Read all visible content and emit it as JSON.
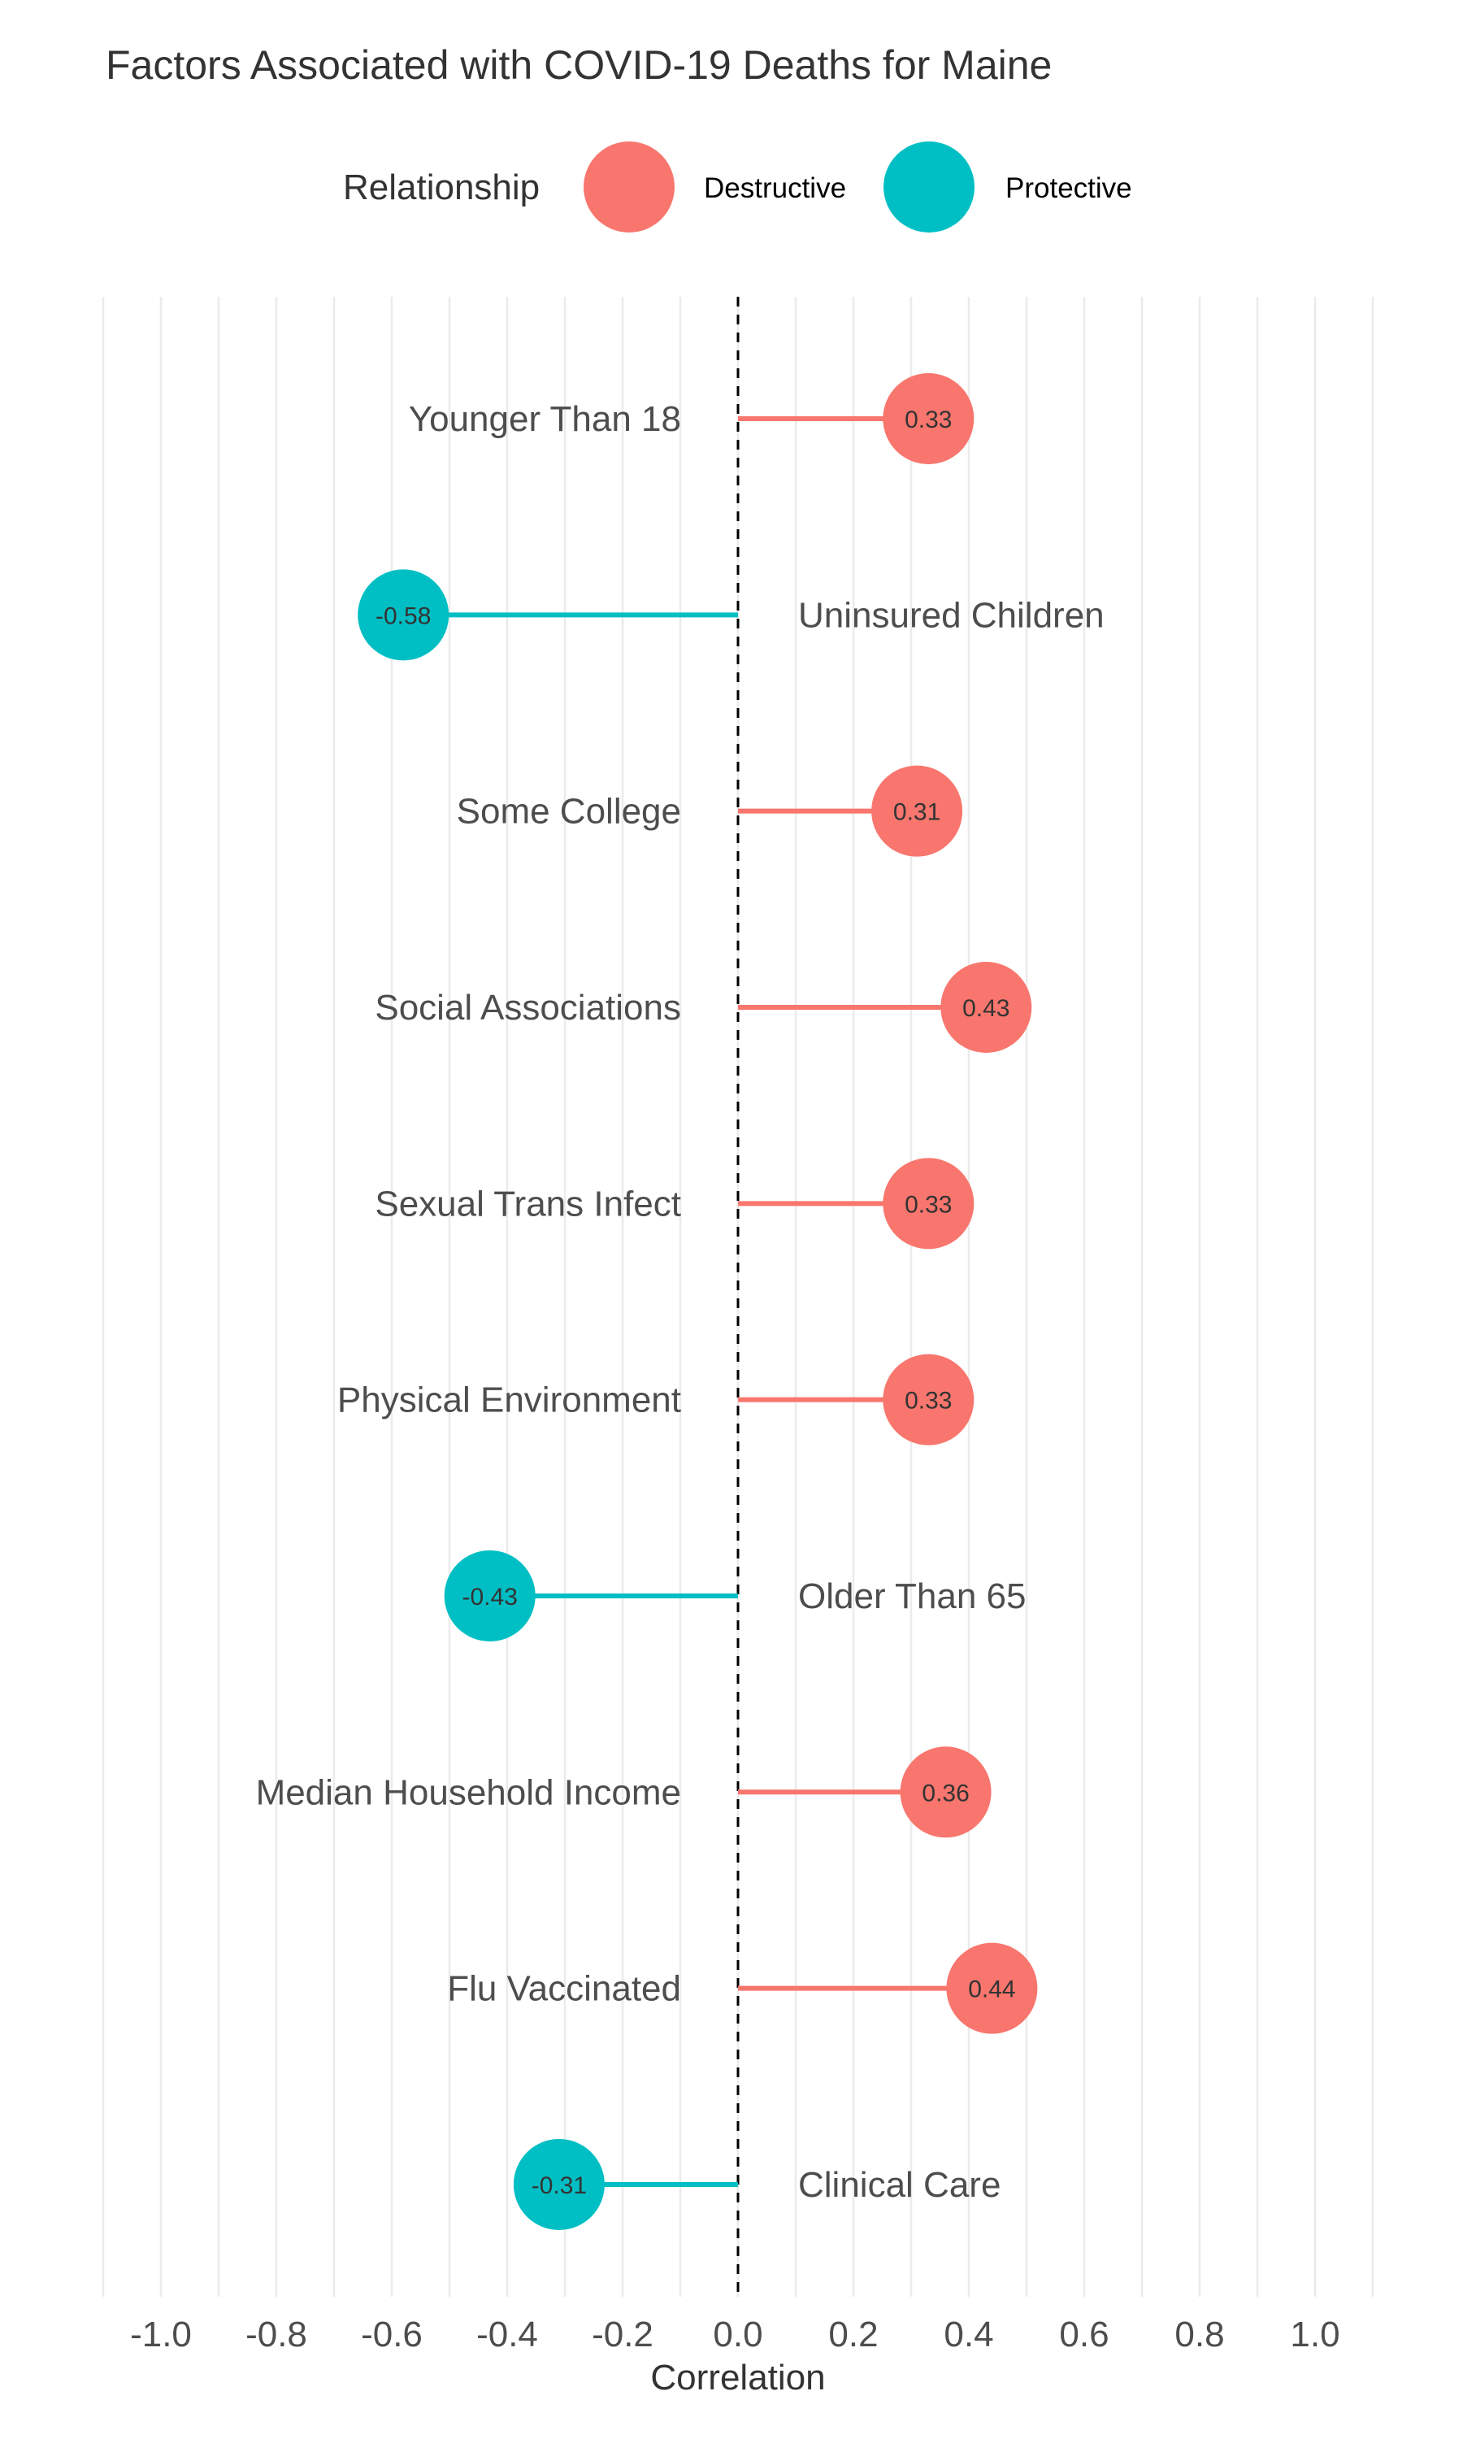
{
  "chart_data": {
    "type": "lollipop",
    "title": "Factors Associated with COVID-19 Deaths for Maine",
    "xlabel": "Correlation",
    "ylabel": "",
    "xlim": [
      -1.1,
      1.1
    ],
    "x_ticks": [
      -1.0,
      -0.8,
      -0.6,
      -0.4,
      -0.2,
      0.0,
      0.2,
      0.4,
      0.6,
      0.8,
      1.0
    ],
    "x_tick_labels": [
      "-1.0",
      "-0.8",
      "-0.6",
      "-0.4",
      "-0.2",
      "0.0",
      "0.2",
      "0.4",
      "0.6",
      "0.8",
      "1.0"
    ],
    "grid": true,
    "reference_line": 0.0,
    "legend": {
      "title": "Relationship",
      "placement": "top",
      "entries": [
        {
          "label": "Destructive",
          "color": "#F8766D"
        },
        {
          "label": "Protective",
          "color": "#00BFC4"
        }
      ]
    },
    "points": [
      {
        "factor": "Younger Than 18",
        "value": 0.33,
        "label": "0.33",
        "relationship": "Destructive"
      },
      {
        "factor": "Uninsured Children",
        "value": -0.58,
        "label": "-0.58",
        "relationship": "Protective"
      },
      {
        "factor": "Some College",
        "value": 0.31,
        "label": "0.31",
        "relationship": "Destructive"
      },
      {
        "factor": "Social Associations",
        "value": 0.43,
        "label": "0.43",
        "relationship": "Destructive"
      },
      {
        "factor": "Sexual Trans Infect",
        "value": 0.33,
        "label": "0.33",
        "relationship": "Destructive"
      },
      {
        "factor": "Physical Environment",
        "value": 0.33,
        "label": "0.33",
        "relationship": "Destructive"
      },
      {
        "factor": "Older Than 65",
        "value": -0.43,
        "label": "-0.43",
        "relationship": "Protective"
      },
      {
        "factor": "Median Household Income",
        "value": 0.36,
        "label": "0.36",
        "relationship": "Destructive"
      },
      {
        "factor": "Flu Vaccinated",
        "value": 0.44,
        "label": "0.44",
        "relationship": "Destructive"
      },
      {
        "factor": "Clinical Care",
        "value": -0.31,
        "label": "-0.31",
        "relationship": "Protective"
      }
    ]
  }
}
